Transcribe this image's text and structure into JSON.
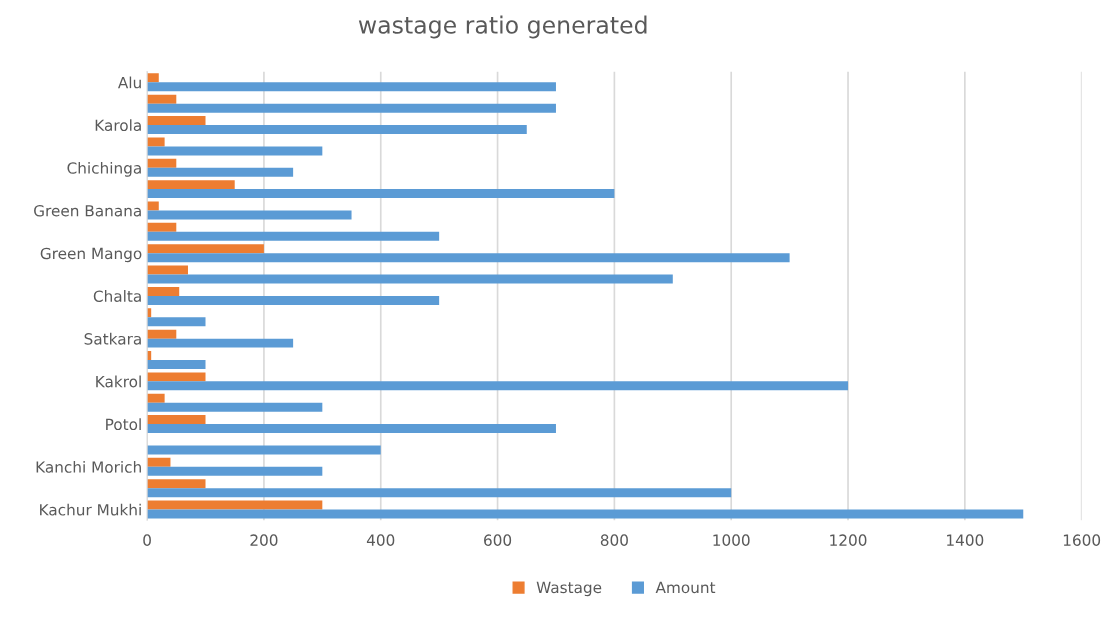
{
  "chart_data": {
    "type": "bar",
    "orientation": "horizontal",
    "title": "wastage ratio generated",
    "categories": [
      "Alu",
      null,
      "Karola",
      null,
      "Chichinga",
      null,
      "Green Banana",
      null,
      "Green Mango",
      null,
      "Chalta",
      null,
      "Satkara",
      null,
      "Kakrol",
      null,
      "Potol",
      null,
      "Kanchi Morich",
      null,
      "Kachur Mukhi"
    ],
    "series": [
      {
        "name": "Wastage",
        "color": "#ed7d31",
        "values": [
          20,
          50,
          100,
          30,
          50,
          150,
          20,
          50,
          200,
          70,
          55,
          7,
          50,
          7,
          100,
          30,
          100,
          null,
          40,
          100,
          300
        ]
      },
      {
        "name": "Amount",
        "color": "#5b9bd5",
        "values": [
          700,
          700,
          650,
          300,
          250,
          800,
          350,
          500,
          1100,
          900,
          500,
          100,
          250,
          100,
          1200,
          300,
          700,
          400,
          300,
          1000,
          1500
        ]
      }
    ],
    "xlim": [
      0,
      1600
    ],
    "xticks": [
      0,
      200,
      400,
      600,
      800,
      1000,
      1200,
      1400,
      1600
    ],
    "grid": "x",
    "legend": "bottom"
  }
}
